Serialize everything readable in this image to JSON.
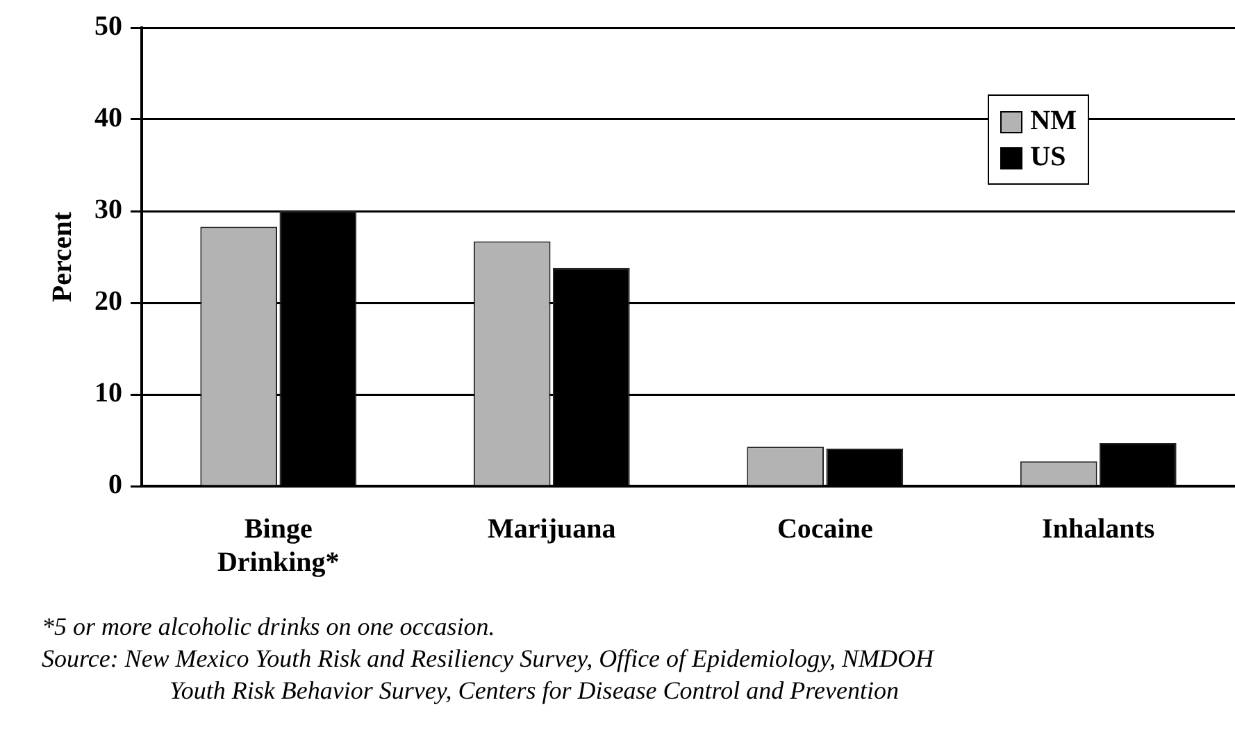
{
  "chart_data": {
    "type": "bar",
    "ylabel": "Percent",
    "categories": [
      "Binge Drinking*",
      "Marijuana",
      "Cocaine",
      "Inhalants"
    ],
    "series": [
      {
        "name": "NM",
        "color": "#b3b3b3",
        "values": [
          28.3,
          26.7,
          4.3,
          2.7
        ]
      },
      {
        "name": "US",
        "color": "#000000",
        "values": [
          30.0,
          23.8,
          4.1,
          4.7
        ]
      }
    ],
    "ylim": [
      0,
      50
    ],
    "yticks": [
      0,
      10,
      20,
      30,
      40,
      50
    ],
    "grid": "y",
    "legend": "top right",
    "annotations": [
      "*5 or more alcoholic drinks on one occasion.",
      "Source:  New Mexico Youth Risk and Resiliency Survey, Office of Epidemiology, NMDOH",
      "Youth Risk Behavior Survey, Centers for Disease Control and Prevention"
    ]
  }
}
